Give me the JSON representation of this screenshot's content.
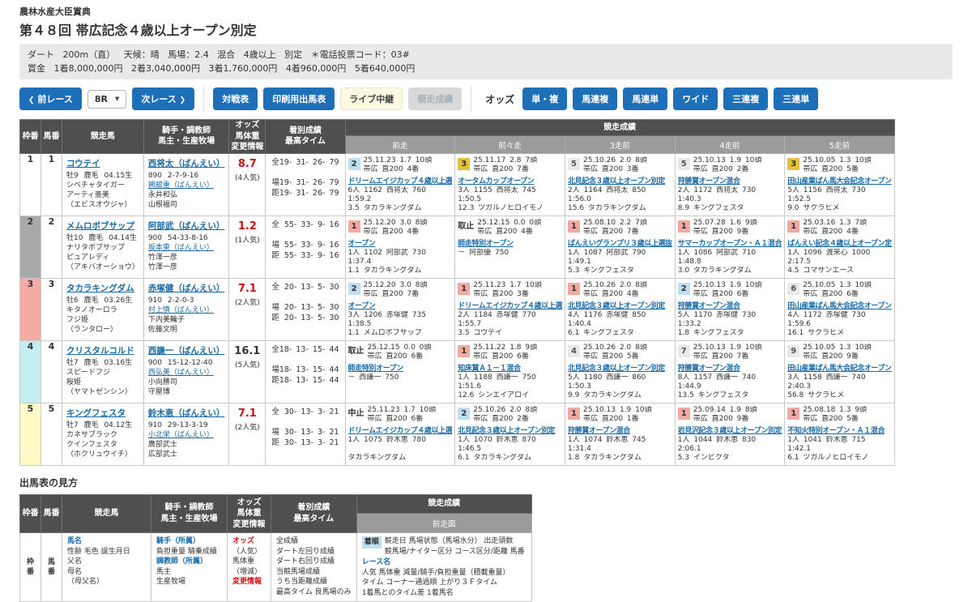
{
  "colors": {
    "accent_blue": "#1d6fb8",
    "link_blue": "#1a6aa8",
    "alert_red": "#cc1111",
    "pos1": "#f2a9a1",
    "pos2": "#bfdef0",
    "pos3": "#e4c03e",
    "pos_other": "#e9e9e9",
    "header_dark": "#4f4f4f",
    "header_mid": "#9b9b9b"
  },
  "header": {
    "award": "農林水産大臣賞典",
    "title": "第４８回 帯広記念４歳以上オープン別定",
    "info_line1": "ダート 200m（直） 天候：晴 馬場：2.4 混合 4歳以上 別定 ＊電話投票コード：03#",
    "info_line2": "賞金 1着8,000,000円 2着3,040,000円 3着1,760,000円 4着960,000円 5着640,000円"
  },
  "toolbar": {
    "prev_icon": "❮",
    "next_icon": "❯",
    "caret_icon": "▼",
    "prev": "前レース",
    "race_no": "8R",
    "next": "次レース",
    "taisen": "対戦表",
    "print": "印刷用出馬表",
    "live": "ライブ中継",
    "results": "競走成績",
    "odds_label": "オッズ",
    "odds_buttons": [
      "単・複",
      "馬連複",
      "馬連単",
      "ワイド",
      "三連複",
      "三連単"
    ]
  },
  "table": {
    "race_header": "競走成績",
    "race_cols": [
      "前走",
      "前々走",
      "3走前",
      "4走前",
      "5走前"
    ],
    "headers": {
      "waku": "枠番",
      "uma": "馬番",
      "horse": "競走馬",
      "jockey1": "騎手・調教師",
      "jockey2": "馬主・生産牧場",
      "odds1": "オッズ",
      "odds2": "馬体重",
      "odds3": "変更情報",
      "stats1": "着別成績",
      "stats2": "最高タイム"
    },
    "stats_labels": [
      "全",
      "場",
      "距"
    ],
    "rows": [
      {
        "waku": "1",
        "waku_color": "#ffffff",
        "uma": "1",
        "horse": {
          "name": "コウテイ",
          "info": "牡9 鹿毛 04.15生",
          "sire": "シベチャタイガー",
          "dam": "アーティ亜美",
          "damsire": "（エビスオウジャ）"
        },
        "jockey": {
          "name": "西将太（ばんえい）",
          "record": "890 2-7-9-16",
          "trainer": "槻舘重（ばんえい）",
          "owner": "永井和弘",
          "breeder": "山根福司"
        },
        "odds": {
          "value": "8.7",
          "rank": "(4人気)",
          "dark": false
        },
        "stats": [
          "19- 31- 26- 79",
          "19- 31- 26- 79",
          "19- 31- 26- 79"
        ],
        "races": [
          {
            "pos": "2",
            "type": "2",
            "l1": "25.11.23 1.7 10頭",
            "l2": "帯広 直200 4番",
            "name": "ドリームエイジカップ４歳以上選",
            "l4": "6人 1162 西将太 760",
            "time": "1:59.2",
            "margin": "3.5 タカラキングダム"
          },
          {
            "pos": "3",
            "type": "3",
            "l1": "25.11.17 2.8 7頭",
            "l2": "帯広 直200 7番",
            "name": "オータムカップオープン",
            "l4": "3人 1155 西将太 745",
            "time": "1:50.5",
            "margin": "12.3 ツガルノヒロイモノ"
          },
          {
            "pos": "5",
            "type": "o",
            "l1": "25.10.26 2.0 8頭",
            "l2": "帯広 直200 3番",
            "name": "北見記念３歳以上オープン別定",
            "l4": "2人 1164 西将太 850",
            "time": "1:56.0",
            "margin": "15.6 タカラキングダム"
          },
          {
            "pos": "5",
            "type": "o",
            "l1": "25.10.13 1.9 10頭",
            "l2": "帯広 直200 2番",
            "name": "狩勝賞オープン混合",
            "l4": "2人 1172 西将太 730",
            "time": "1:40.3",
            "margin": "8.9 キングフェスタ"
          },
          {
            "pos": "3",
            "type": "3",
            "l1": "25.10.05 1.3 10頭",
            "l2": "帯広 直200 5番",
            "name": "田山産業ばん馬大会記念オープン",
            "l4": "5人 1156 西将太 730",
            "time": "1:52.5",
            "margin": "9.0 サクラヒメ"
          }
        ]
      },
      {
        "waku": "2",
        "waku_color": "#a8a8a8",
        "uma": "2",
        "horse": {
          "name": "メムロボブサップ",
          "info": "牡10 鹿毛 04.14生",
          "sire": "ナリタボブサップ",
          "dam": "ピュアレディ",
          "damsire": "（アキバオーショウ）"
        },
        "jockey": {
          "name": "阿部武（ばんえい）",
          "record": "900 54-33-8-16",
          "trainer": "坂本東（ばんえい）",
          "owner": "竹澤一彦",
          "breeder": "竹澤一彦"
        },
        "odds": {
          "value": "1.2",
          "rank": "(1人気)",
          "dark": false
        },
        "stats": [
          "55- 33- 9- 16",
          "55- 33- 9- 16",
          "55- 33- 9- 16"
        ],
        "races": [
          {
            "pos": "1",
            "type": "1",
            "l1": "25.12.20 3.0 8頭",
            "l2": "帯広 直200 4番",
            "name": "オープン",
            "l4": "1人 1102 阿部武 730",
            "time": "1:37.4",
            "margin": "1.1 タカラキングダム"
          },
          {
            "pos": "取止",
            "type": "c",
            "l1": "25.12.15 0.0 0頭",
            "l2": "帯広 直200 4番",
            "name": "師走特別オープン",
            "l4": "－ 阿部優 750",
            "time": "",
            "margin": ""
          },
          {
            "pos": "1",
            "type": "1",
            "l1": "25.08.10 2.2 7頭",
            "l2": "帯広 直200 7番",
            "name": "ばんえいグランプリ３歳以上選抜",
            "l4": "1人 1087 阿部武 790",
            "time": "1:49.1",
            "margin": "5.3 キングフェスタ"
          },
          {
            "pos": "1",
            "type": "1",
            "l1": "25.07.28 1.6 9頭",
            "l2": "帯広 直200 9番",
            "name": "サマーカップオープン・Ａ１混合",
            "l4": "1人 1086 阿部武 710",
            "time": "1:48.8",
            "margin": "3.0 タカラキングダム"
          },
          {
            "pos": "1",
            "type": "1",
            "l1": "25.03.16 1.3 7頭",
            "l2": "帯広 直200 4番",
            "name": "ばんえい記念４歳以上オープン定",
            "l4": "1人 1096 渡来心 1000",
            "time": "2:17.5",
            "margin": "4.5 コマサンエース"
          }
        ]
      },
      {
        "waku": "3",
        "waku_color": "#f6aaa4",
        "uma": "3",
        "horse": {
          "name": "タカラキングダム",
          "info": "牡6 鹿毛 03.26生",
          "sire": "キタノオーロラ",
          "dam": "フジ姫",
          "damsire": "（ランタロー）"
        },
        "jockey": {
          "name": "赤塚健（ばんえい）",
          "record": "910 2-2-0-3",
          "trainer": "村上慎（ばんえい）",
          "owner": "下内美輪子",
          "breeder": "佐藤文明"
        },
        "odds": {
          "value": "7.1",
          "rank": "(2人気)",
          "dark": false
        },
        "stats": [
          "20- 13- 5- 30",
          "20- 13- 5- 30",
          "20- 13- 5- 30"
        ],
        "races": [
          {
            "pos": "2",
            "type": "2",
            "l1": "25.12.20 3.0 8頭",
            "l2": "帯広 直200 7番",
            "name": "オープン",
            "l4": "3人 1206 赤塚健 735",
            "time": "1:38.5",
            "margin": "1.1 メムロボブサップ"
          },
          {
            "pos": "1",
            "type": "1",
            "l1": "25.11.23 1.7 10頭",
            "l2": "帯広 直200 3番",
            "name": "ドリームエイジカップ４歳以上選",
            "l4": "2人 1184 赤塚健 770",
            "time": "1:55.7",
            "margin": "3.5 コウテイ"
          },
          {
            "pos": "1",
            "type": "1",
            "l1": "25.10.26 2.0 8頭",
            "l2": "帯広 直200 4番",
            "name": "北見記念３歳以上オープン別定",
            "l4": "4人 1176 赤塚健 850",
            "time": "1:40.4",
            "margin": "6.1 キングフェスタ"
          },
          {
            "pos": "2",
            "type": "2",
            "l1": "25.10.13 1.9 10頭",
            "l2": "帯広 直200 6番",
            "name": "狩勝賞オープン混合",
            "l4": "5人 1170 赤塚健 730",
            "time": "1:33.2",
            "margin": "1.8 キングフェスタ"
          },
          {
            "pos": "6",
            "type": "o",
            "l1": "25.10.05 1.3 10頭",
            "l2": "帯広 直200 6番",
            "name": "田山産業ばん馬大会記念オープン",
            "l4": "4人 1172 赤塚健 730",
            "time": "1:59.6",
            "margin": "16.1 サクラヒメ"
          }
        ]
      },
      {
        "waku": "4",
        "waku_color": "#c5eef2",
        "uma": "4",
        "horse": {
          "name": "クリスタルコルド",
          "info": "牡7 鹿毛 03.16生",
          "sire": "スピードフジ",
          "dam": "桜姫",
          "damsire": "（ヤマトゼンシン）"
        },
        "jockey": {
          "name": "西謙一（ばんえい）",
          "record": "900 15-12-12-40",
          "trainer": "西弘美（ばんえい）",
          "owner": "小向勝司",
          "breeder": "守屋博"
        },
        "odds": {
          "value": "16.1",
          "rank": "(5人気)",
          "dark": true
        },
        "stats": [
          "18- 13- 15- 44",
          "18- 13- 15- 44",
          "18- 13- 15- 44"
        ],
        "races": [
          {
            "pos": "取止",
            "type": "c",
            "l1": "25.12.15 0.0 0頭",
            "l2": "帯広 直200 6番",
            "name": "師走特別オープン",
            "l4": "－ 西謙一 750",
            "time": "",
            "margin": ""
          },
          {
            "pos": "1",
            "type": "1",
            "l1": "25.11.22 1.8 9頭",
            "l2": "帯広 直200 6番",
            "name": "知床賞Ａ１－１混合",
            "l4": "1人 1188 西謙一 750",
            "time": "1:51.6",
            "margin": "12.6 シンエイアロイ"
          },
          {
            "pos": "4",
            "type": "o",
            "l1": "25.10.26 2.0 8頭",
            "l2": "帯広 直200 5番",
            "name": "北見記念３歳以上オープン別定",
            "l4": "5人 1180 西謙一 860",
            "time": "1:50.3",
            "margin": "9.9 タカラキングダム"
          },
          {
            "pos": "7",
            "type": "o",
            "l1": "25.10.13 1.9 10頭",
            "l2": "帯広 直200 7番",
            "name": "狩勝賞オープン混合",
            "l4": "8人 1157 西謙一 740",
            "time": "1:44.9",
            "margin": "13.5 キングフェスタ"
          },
          {
            "pos": "9",
            "type": "o",
            "l1": "25.10.05 1.3 10頭",
            "l2": "帯広 直200 9番",
            "name": "田山産業ばん馬大会記念オープン",
            "l4": "3人 1158 西謙一 740",
            "time": "2:40.3",
            "margin": "56.8 サクラヒメ"
          }
        ]
      },
      {
        "waku": "5",
        "waku_color": "#fcf9c4",
        "uma": "5",
        "horse": {
          "name": "キングフェスタ",
          "info": "牡7 鹿毛 04.12生",
          "sire": "カネサブラック",
          "dam": "クインフェスタ",
          "damsire": "（ホクリュウイチ）"
        },
        "jockey": {
          "name": "鈴木恵（ばんえい）",
          "record": "910 29-13-3-19",
          "trainer": "小北栄（ばんえい）",
          "owner": "廣部武士",
          "breeder": "広部武士"
        },
        "odds": {
          "value": "7.1",
          "rank": "(2人気)",
          "dark": false
        },
        "stats": [
          "30- 13- 3- 21",
          "30- 13- 3- 21",
          "30- 13- 3- 21"
        ],
        "races": [
          {
            "pos": "中止",
            "type": "c",
            "l1": "25.11.23 1.7 10頭",
            "l2": "帯広 直200 6番",
            "name": "ドリームエイジカップ４歳以上選",
            "l4": "1人 1075 鈴木恵 780",
            "time": "",
            "margin": "タカラキングダム"
          },
          {
            "pos": "2",
            "type": "2",
            "l1": "25.10.26 2.0 8頭",
            "l2": "帯広 直200 2番",
            "name": "北見記念３歳以上オープン別定",
            "l4": "1人 1070 鈴木恵 870",
            "time": "1:46.5",
            "margin": "6.1 タカラキングダム"
          },
          {
            "pos": "1",
            "type": "1",
            "l1": "25.10.13 1.9 10頭",
            "l2": "帯広 直200 1番",
            "name": "狩勝賞オープン混合",
            "l4": "1人 1074 鈴木恵 745",
            "time": "1:31.4",
            "margin": "1.8 タカラキングダム"
          },
          {
            "pos": "1",
            "type": "1",
            "l1": "25.09.14 1.9 8頭",
            "l2": "帯広 直200 9番",
            "name": "岩見沢記念３歳以上オープン別定",
            "l4": "1人 1044 鈴木恵 830",
            "time": "2:06.1",
            "margin": "5.3 インビクタ"
          },
          {
            "pos": "1",
            "type": "1",
            "l1": "25.08.18 1.3 9頭",
            "l2": "帯広 直200 5番",
            "name": "不知火特別オープン・Ａ１混合",
            "l4": "1人 1041 鈴木恵 715",
            "time": "1:42.1",
            "margin": "6.1 ツガルノヒロイモノ"
          }
        ]
      }
    ]
  },
  "legend": {
    "title": "出馬表の見方",
    "race_sub": "前走図",
    "waku": "枠番",
    "uma": "馬番",
    "horse_lines": [
      [
        "馬名",
        "link"
      ],
      [
        "性齢 毛色 誕生月日",
        ""
      ],
      [
        "父名",
        ""
      ],
      [
        "母名",
        ""
      ],
      [
        "（母父名）",
        ""
      ]
    ],
    "jockey_lines": [
      [
        "騎手（所属）",
        "link"
      ],
      [
        "負担重量 騎乗成績",
        ""
      ],
      [
        "調教師（所属）",
        "link"
      ],
      [
        "馬主",
        ""
      ],
      [
        "生産牧場",
        ""
      ]
    ],
    "odds_lines": [
      [
        "オッズ",
        "red"
      ],
      [
        "（人気）",
        ""
      ],
      [
        "馬体重",
        ""
      ],
      [
        "（増減）",
        ""
      ],
      [
        "変更情報",
        "red"
      ]
    ],
    "stats_lines": [
      [
        "全成績",
        ""
      ],
      [
        "ダート左回り成績",
        ""
      ],
      [
        "ダート右回り成績",
        ""
      ],
      [
        "当競馬場成績",
        ""
      ],
      [
        "うち当距離成績",
        ""
      ],
      [
        "最高タイム 良馬場のみ",
        ""
      ]
    ],
    "race_badge": "着順",
    "race_badge_lines": [
      "競走日 馬場状態（馬場水分） 出走頭数",
      "競馬場/ナイター区分 コース区分/距離 馬番"
    ],
    "race_lines": [
      [
        "レース名",
        "link"
      ],
      [
        "人気 馬体重 減量/騎手/負担重量（積載重量）",
        ""
      ],
      [
        "タイム コーナー通過順 上がり３Ｆタイム",
        ""
      ],
      [
        "1着馬とのタイム差 1着馬名",
        ""
      ]
    ]
  }
}
